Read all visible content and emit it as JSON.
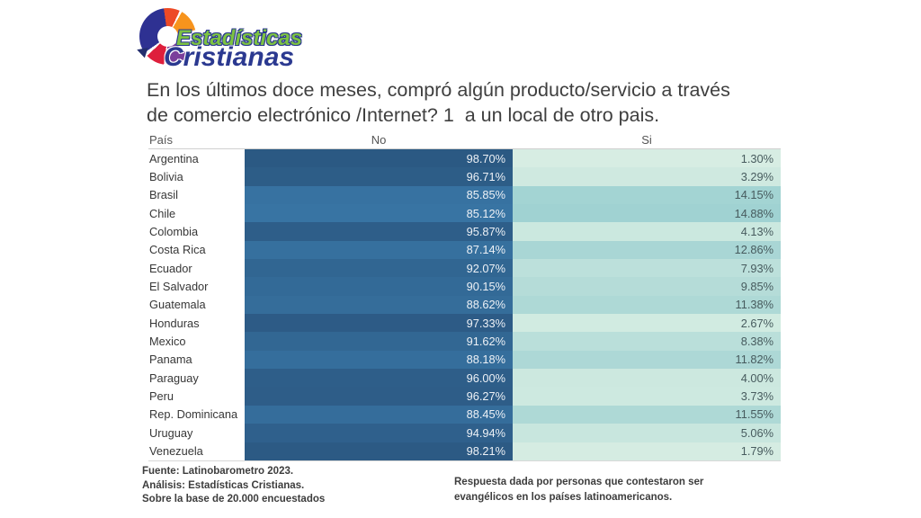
{
  "logo": {
    "line1": "Estadísticas",
    "line2": "Cristianas",
    "colors": {
      "green": "#7DC242",
      "navy": "#2B3990",
      "orange": "#F7941D",
      "red_orange": "#ED4A26",
      "crimson": "#DE1F3C",
      "purple": "#7B3F9B"
    }
  },
  "title": "En los últimos doce meses, compró algún producto/servicio a través\nde comercio electrónico /Internet? 1  a un local de otro pais.",
  "chart_data": {
    "type": "heatmap",
    "columns": [
      "País",
      "No",
      "Si"
    ],
    "rows": [
      {
        "country": "Argentina",
        "no": 98.7,
        "si": 1.3
      },
      {
        "country": "Bolivia",
        "no": 96.71,
        "si": 3.29
      },
      {
        "country": "Brasil",
        "no": 85.85,
        "si": 14.15
      },
      {
        "country": "Chile",
        "no": 85.12,
        "si": 14.88
      },
      {
        "country": "Colombia",
        "no": 95.87,
        "si": 4.13
      },
      {
        "country": "Costa Rica",
        "no": 87.14,
        "si": 12.86
      },
      {
        "country": "Ecuador",
        "no": 92.07,
        "si": 7.93
      },
      {
        "country": "El Salvador",
        "no": 90.15,
        "si": 9.85
      },
      {
        "country": "Guatemala",
        "no": 88.62,
        "si": 11.38
      },
      {
        "country": "Honduras",
        "no": 97.33,
        "si": 2.67
      },
      {
        "country": "Mexico",
        "no": 91.62,
        "si": 8.38
      },
      {
        "country": "Panama",
        "no": 88.18,
        "si": 11.82
      },
      {
        "country": "Paraguay",
        "no": 96.0,
        "si": 4.0
      },
      {
        "country": "Peru",
        "no": 96.27,
        "si": 3.73
      },
      {
        "country": "Rep. Dominicana",
        "no": 88.45,
        "si": 11.55
      },
      {
        "country": "Uruguay",
        "no": 94.94,
        "si": 5.06
      },
      {
        "country": "Venezuela",
        "no": 98.21,
        "si": 1.79
      }
    ],
    "value_suffix": "%",
    "value_decimals": 2,
    "color_scales": {
      "no": {
        "min": 85,
        "max": 99,
        "from": "#3874A3",
        "to": "#2B5882",
        "text": "#EDF1F6"
      },
      "si": {
        "min": 1,
        "max": 15,
        "from": "#D8EEE3",
        "to": "#A0D2D2",
        "text": "#475B5E"
      }
    }
  },
  "footnotes": {
    "left": [
      "Fuente: Latinobarometro 2023.",
      "Análisis: Estadísticas Cristianas.",
      "Sobre la base de 20.000 encuestados"
    ],
    "right": "Respuesta dada por personas que contestaron ser evangélicos en los países latinoamericanos."
  }
}
